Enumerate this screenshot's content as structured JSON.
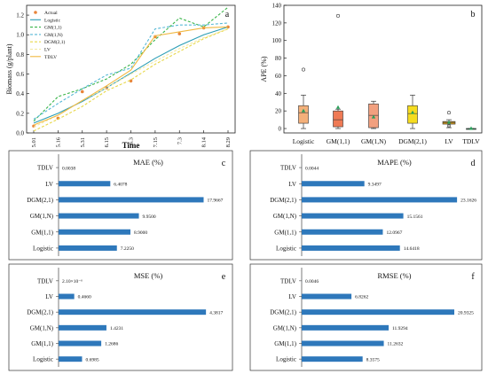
{
  "colors": {
    "actual": "#e8843a",
    "logistic": "#2a9db5",
    "gm11": "#3ab54a",
    "gm1n": "#56b8d6",
    "dgm21": "#e8d84a",
    "lv": "#f2e8a0",
    "tdlv": "#f0b840",
    "bar": "#2e78bb",
    "box_logistic": "#f4b07a",
    "box_gm11": "#ef7a55",
    "box_gm1n": "#f2a07f",
    "box_dgm21": "#f5dc20",
    "box_lv": "#d49a20",
    "box_tdlv": "#2aa05a",
    "mean_marker": "#2aa05a"
  },
  "chart_data": [
    {
      "panel_label": "a",
      "type": "line",
      "xlabel": "Time",
      "ylabel": "Biomass (g/plant)",
      "categories": [
        "5.01",
        "5.16",
        "5.31",
        "6.15",
        "6.3",
        "7.15",
        "7.3",
        "8.14",
        "8.29"
      ],
      "ylim": [
        0,
        1.3
      ],
      "yticks": [
        "0.0",
        "0.2",
        "0.4",
        "0.6",
        "0.8",
        "1.0",
        "1.2"
      ],
      "legend_position": "top-left",
      "series": [
        {
          "name": "Actual",
          "kind": "points",
          "values": [
            0.07,
            0.15,
            0.42,
            0.46,
            0.53,
            0.98,
            1.01,
            1.07,
            1.08
          ]
        },
        {
          "name": "Logistic",
          "kind": "solid",
          "values": [
            0.1,
            0.2,
            0.32,
            0.46,
            0.61,
            0.76,
            0.89,
            1.0,
            1.08
          ]
        },
        {
          "name": "GM(1,1)",
          "kind": "dash",
          "values": [
            0.12,
            0.37,
            0.45,
            0.55,
            0.7,
            0.95,
            1.17,
            1.08,
            1.28
          ]
        },
        {
          "name": "GM(1,N)",
          "kind": "dash",
          "values": [
            0.14,
            0.3,
            0.45,
            0.59,
            0.66,
            1.06,
            1.1,
            1.1,
            1.12
          ]
        },
        {
          "name": "DGM(2,1)",
          "kind": "dash",
          "values": [
            0.02,
            0.14,
            0.27,
            0.43,
            0.54,
            0.7,
            0.83,
            0.96,
            1.06
          ]
        },
        {
          "name": "LV",
          "kind": "dash",
          "values": [
            0.06,
            0.18,
            0.33,
            0.46,
            0.6,
            0.73,
            0.86,
            0.97,
            1.06
          ]
        },
        {
          "name": "TDLV",
          "kind": "solid",
          "values": [
            0.08,
            0.18,
            0.33,
            0.48,
            0.64,
            0.99,
            1.03,
            1.07,
            1.08
          ]
        }
      ]
    },
    {
      "panel_label": "b",
      "type": "box",
      "ylabel": "APE (%)",
      "ylim": [
        -5,
        140
      ],
      "yticks": [
        "0",
        "20",
        "40",
        "60",
        "80",
        "100",
        "120",
        "140"
      ],
      "categories": [
        "Logistic",
        "GM(1,1)",
        "GM(1,N)",
        "DGM(2,1)",
        "LV",
        "TDLV"
      ],
      "boxes": [
        {
          "min": 0,
          "q1": 6,
          "median": 18,
          "q3": 26,
          "max": 38,
          "mean": 20,
          "outliers": [
            67
          ]
        },
        {
          "min": 0,
          "q1": 2,
          "median": 10,
          "q3": 20,
          "max": 22,
          "mean": 24,
          "outliers": [
            128
          ]
        },
        {
          "min": 0,
          "q1": 1,
          "median": 15,
          "q3": 28,
          "max": 31,
          "mean": 13,
          "outliers": []
        },
        {
          "min": 0,
          "q1": 6,
          "median": 17,
          "q3": 26,
          "max": 38,
          "mean": 18,
          "outliers": []
        },
        {
          "min": 1,
          "q1": 5,
          "median": 7,
          "q3": 8,
          "max": 10,
          "mean": 7,
          "outliers": [
            18,
            3
          ]
        },
        {
          "min": 0,
          "q1": 0,
          "median": 0,
          "q3": 0,
          "max": 0,
          "mean": 0,
          "outliers": []
        }
      ]
    },
    {
      "panel_label": "c",
      "type": "bar",
      "title": "MAE (%)",
      "categories": [
        "TDLV",
        "LV",
        "DGM(2,1)",
        "GM(1,N)",
        "GM(1,1)",
        "Logistic"
      ],
      "values": [
        0.0038,
        6.4078,
        17.9667,
        9.95,
        8.9,
        7.225
      ],
      "labels": [
        "0.0038",
        "6.4078",
        "17.9667",
        "9.9500",
        "8.9000",
        "7.2250"
      ],
      "xmax": 20
    },
    {
      "panel_label": "d",
      "type": "bar",
      "title": "MAPE (%)",
      "categories": [
        "TDLV",
        "LV",
        "DGM(2,1)",
        "GM(1,N)",
        "GM(1,1)",
        "Logistic"
      ],
      "values": [
        0.0044,
        9.3497,
        23.1626,
        15.1561,
        12.0967,
        14.6418
      ],
      "labels": [
        "0.0044",
        "9.3497",
        "23.1626",
        "15.1561",
        "12.0967",
        "14.6418"
      ],
      "xmax": 25
    },
    {
      "panel_label": "e",
      "type": "bar",
      "title": "MSE (%)",
      "categories": [
        "TDLV",
        "LV",
        "DGM(2,1)",
        "GM(1,N)",
        "GM(1,1)",
        "Logistic"
      ],
      "values": [
        2.1e-06,
        0.466,
        4.3817,
        1.4231,
        1.2686,
        0.6985
      ],
      "labels": [
        "2.10×10⁻⁶",
        "0.4660",
        "4.3817",
        "1.4231",
        "1.2686",
        "0.6985"
      ],
      "xmax": 4.8
    },
    {
      "panel_label": "f",
      "type": "bar",
      "title": "RMSE (%)",
      "categories": [
        "TDLV",
        "LV",
        "DGM(2,1)",
        "GM(1,N)",
        "GM(1,1)",
        "Logistic"
      ],
      "values": [
        0.0046,
        6.8262,
        20.9325,
        11.9294,
        11.2632,
        8.3575
      ],
      "labels": [
        "0.0046",
        "6.8262",
        "20.9325",
        "11.9294",
        "11.2632",
        "8.3575"
      ],
      "xmax": 23
    }
  ]
}
